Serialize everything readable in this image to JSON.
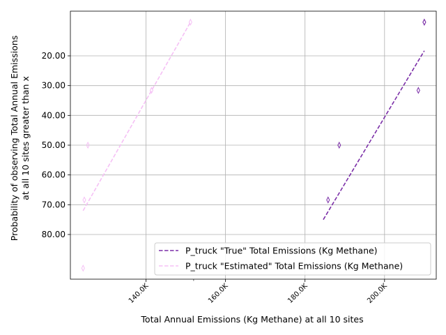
{
  "chart_data": {
    "type": "line",
    "xlabel": "Total Annual Emissions (Kg Methane) at all 10 sites",
    "ylabel_line1": "Probability of observing Total Annual Emissions",
    "ylabel_line2": "at all 10 sites greater than x",
    "x_ticks": [
      {
        "value": 140000,
        "label": "140.0K"
      },
      {
        "value": 160000,
        "label": "160.0K"
      },
      {
        "value": 180000,
        "label": "180.0K"
      },
      {
        "value": 200000,
        "label": "200.0K"
      }
    ],
    "x_minor_ticks": [
      152000
    ],
    "y_ticks": [
      {
        "value": 20,
        "label": "20.00"
      },
      {
        "value": 30,
        "label": "30.00"
      },
      {
        "value": 40,
        "label": "40.00"
      },
      {
        "value": 50,
        "label": "50.00"
      },
      {
        "value": 60,
        "label": "60.00"
      },
      {
        "value": 70,
        "label": "70.00"
      },
      {
        "value": 80,
        "label": "80.00"
      }
    ],
    "grid": true,
    "legend_position": "lower-right",
    "series": [
      {
        "name": "P_truck \"True\" Total Emissions (Kg Methane)",
        "color": "#7b2fa8",
        "line": [
          [
            184600,
            75.0
          ],
          [
            210000,
            18.3
          ]
        ],
        "points": [
          [
            210000,
            8.7
          ],
          [
            208500,
            31.6
          ],
          [
            188600,
            50.0
          ],
          [
            185800,
            68.4
          ],
          [
            210000,
            8.7
          ]
        ]
      },
      {
        "name": "P_truck \"Estimated\" Total Emissions (Kg Methane)",
        "color": "#f5c0f5",
        "line": [
          [
            124200,
            72.0
          ],
          [
            151200,
            8.7
          ]
        ],
        "points": [
          [
            151200,
            8.7
          ],
          [
            141400,
            31.6
          ],
          [
            125400,
            50.0
          ],
          [
            124500,
            68.4
          ],
          [
            124200,
            91.3
          ]
        ]
      }
    ]
  }
}
